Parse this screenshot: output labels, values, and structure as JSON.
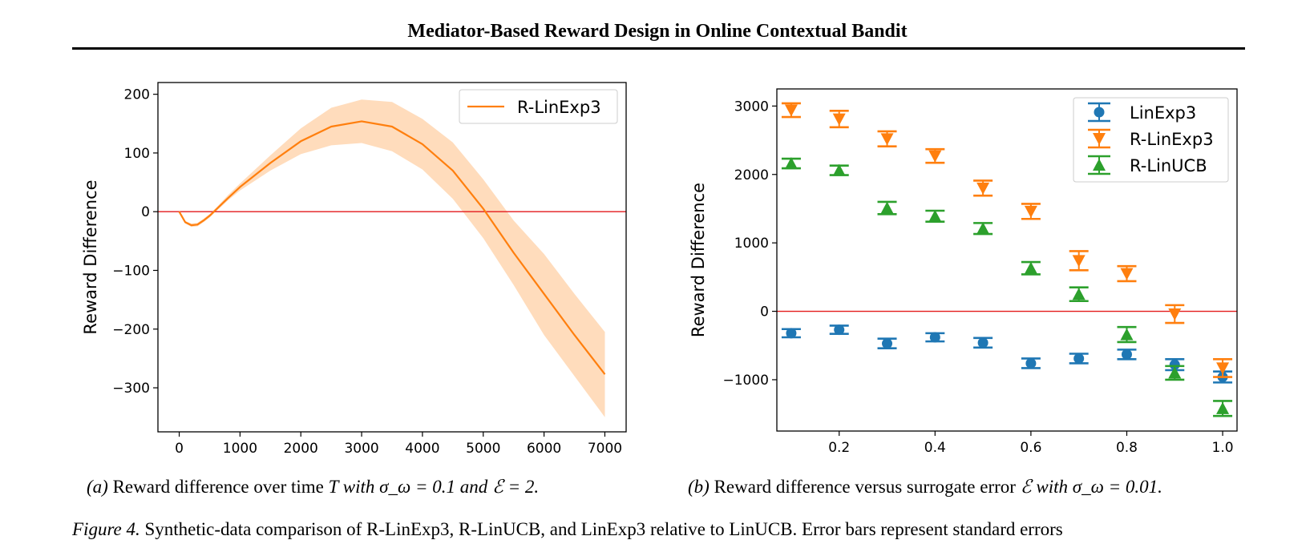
{
  "header": {
    "title": "Mediator-Based Reward Design in Online Contextual Bandit"
  },
  "captions": {
    "a": {
      "label": "(a)",
      "text": "Reward difference over time",
      "math": "T with σ_ω = 0.1 and ℰ = 2."
    },
    "b": {
      "label": "(b)",
      "text": "Reward difference versus surrogate error",
      "math": "ℰ with σ_ω = 0.01."
    }
  },
  "figure_caption": {
    "label": "Figure 4.",
    "text": "Synthetic-data comparison of R-LinExp3, R-LinUCB, and LinExp3 relative to LinUCB. Error bars represent standard errors"
  },
  "colors": {
    "blue": "#1f77b4",
    "orange": "#ff7f0e",
    "green": "#2ca02c",
    "band": "#ffdcbc",
    "zero_line": "#e31a1c"
  },
  "chart_data": [
    {
      "type": "line",
      "title": "",
      "xlabel": "",
      "ylabel": "Reward Difference",
      "xlim": [
        -350,
        7350
      ],
      "ylim": [
        -375,
        220
      ],
      "xticks": [
        0,
        1000,
        2000,
        3000,
        4000,
        5000,
        6000,
        7000
      ],
      "yticks": [
        -300,
        -200,
        -100,
        0,
        100,
        200
      ],
      "ytick_labels": [
        "−300",
        "−200",
        "−100",
        "0",
        "100",
        "200"
      ],
      "reference_line": 0,
      "legend": "top-right",
      "series": [
        {
          "name": "R-LinExp3",
          "color": "#ff7f0e",
          "x": [
            0,
            100,
            200,
            300,
            400,
            500,
            600,
            800,
            1000,
            1500,
            2000,
            2500,
            3000,
            3500,
            4000,
            4500,
            5000,
            5500,
            6000,
            6500,
            7000
          ],
          "y": [
            0,
            -18,
            -23,
            -22,
            -15,
            -7,
            3,
            23,
            42,
            83,
            120,
            145,
            154,
            145,
            115,
            70,
            5,
            -70,
            -140,
            -210,
            -277
          ],
          "lower": [
            0,
            -20,
            -26,
            -25,
            -18,
            -10,
            0,
            19,
            36,
            70,
            98,
            113,
            117,
            103,
            72,
            22,
            -45,
            -125,
            -210,
            -280,
            -350
          ],
          "upper": [
            0,
            -16,
            -20,
            -19,
            -12,
            -4,
            6,
            28,
            48,
            96,
            142,
            177,
            191,
            187,
            158,
            118,
            55,
            -15,
            -72,
            -140,
            -205
          ]
        }
      ]
    },
    {
      "type": "scatter",
      "title": "",
      "xlabel": "",
      "ylabel": "Reward Difference",
      "xlim": [
        0.07,
        1.03
      ],
      "ylim": [
        -1750,
        3250
      ],
      "xticks": [
        0.2,
        0.4,
        0.6,
        0.8,
        1.0
      ],
      "xtick_labels": [
        "0.2",
        "0.4",
        "0.6",
        "0.8",
        "1.0"
      ],
      "yticks": [
        -1000,
        0,
        1000,
        2000,
        3000
      ],
      "ytick_labels": [
        "−1000",
        "0",
        "1000",
        "2000",
        "3000"
      ],
      "reference_line": 0,
      "legend": "top-right",
      "x": [
        0.1,
        0.2,
        0.3,
        0.4,
        0.5,
        0.6,
        0.7,
        0.8,
        0.9,
        1.0
      ],
      "series": [
        {
          "name": "LinExp3",
          "color": "#1f77b4",
          "marker": "circle",
          "y": [
            -320,
            -270,
            -470,
            -380,
            -460,
            -760,
            -690,
            -630,
            -780,
            -960
          ],
          "err": [
            60,
            60,
            70,
            60,
            70,
            70,
            70,
            70,
            80,
            80
          ]
        },
        {
          "name": "R-LinExp3",
          "color": "#ff7f0e",
          "marker": "triangle-down",
          "y": [
            2940,
            2810,
            2520,
            2270,
            1800,
            1460,
            740,
            550,
            -40,
            -830
          ],
          "err": [
            100,
            120,
            110,
            100,
            110,
            110,
            140,
            110,
            130,
            130
          ]
        },
        {
          "name": "R-LinUCB",
          "color": "#2ca02c",
          "marker": "triangle-up",
          "y": [
            2160,
            2060,
            1510,
            1390,
            1210,
            630,
            250,
            -340,
            -900,
            -1420
          ],
          "err": [
            70,
            70,
            90,
            80,
            80,
            90,
            100,
            110,
            100,
            110
          ]
        }
      ]
    }
  ]
}
